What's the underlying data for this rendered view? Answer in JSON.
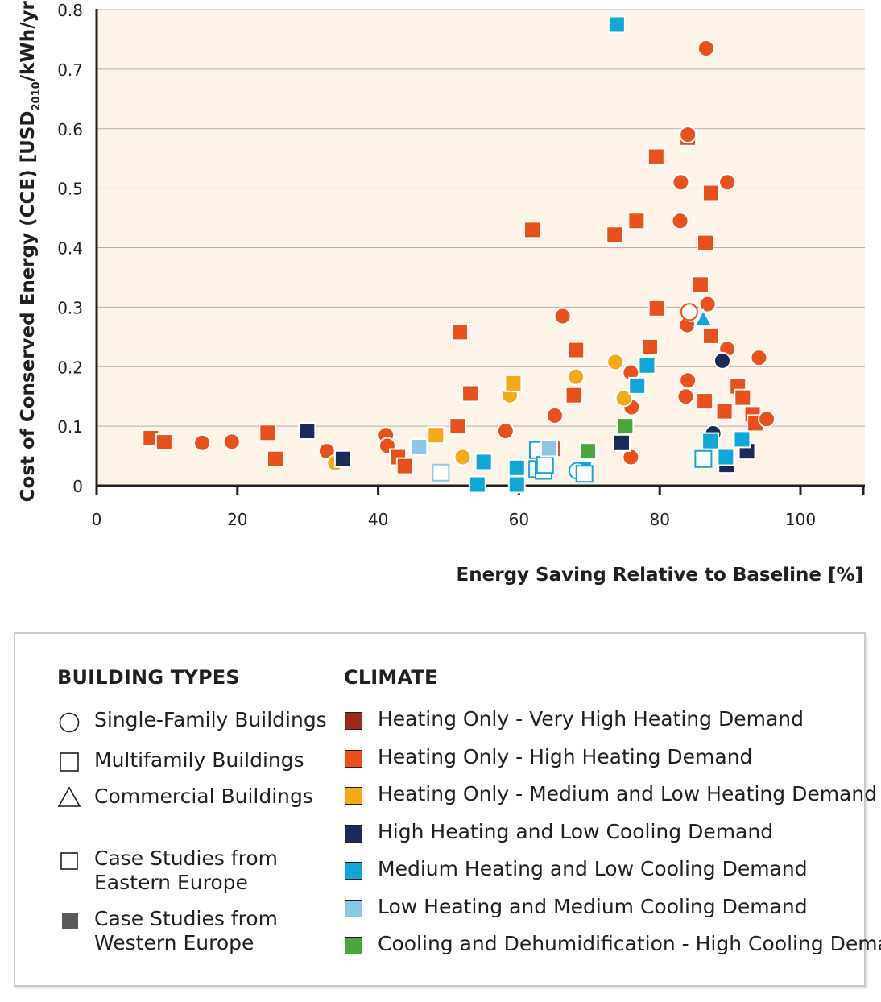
{
  "chart_data": {
    "type": "scatter",
    "xlabel": "Energy Saving Relative to Baseline [%]",
    "ylabel": {
      "main": "Cost of Conserved Energy (CCE) [USD",
      "subscript": "2010",
      "tail": "/kWh/yr]"
    },
    "xlim": [
      0,
      100
    ],
    "ylim": [
      0,
      0.8
    ],
    "xticks": [
      "0",
      "20",
      "40",
      "60",
      "80",
      "100"
    ],
    "yticks": [
      "0",
      "0.1",
      "0.2",
      "0.3",
      "0.4",
      "0.5",
      "0.6",
      "0.7",
      "0.8"
    ],
    "grid": "horizontal",
    "background": "#fdf3e7",
    "climate_colors": {
      "heating_only_very_high": "#9e2a1d",
      "heating_only_high": "#e8501c",
      "heating_only_medium_low": "#f6a81b",
      "high_heating_low_cooling": "#1b2a57",
      "medium_heating_low_cooling": "#10a7d8",
      "low_heating_medium_cooling": "#8cc7e7",
      "cooling_dehumidification": "#4aa63a"
    },
    "series": [
      {
        "climate": "heating_only_high",
        "points": [
          [
            7.7,
            0.08,
            "sq",
            "w"
          ],
          [
            9.6,
            0.073,
            "sq",
            "w"
          ],
          [
            15,
            0.072,
            "ci",
            "w"
          ],
          [
            19.2,
            0.074,
            "ci",
            "w"
          ],
          [
            24.3,
            0.089,
            "sq",
            "w"
          ],
          [
            25.4,
            0.045,
            "sq",
            "w"
          ],
          [
            32.7,
            0.058,
            "ci",
            "w"
          ],
          [
            41.1,
            0.085,
            "ci",
            "w"
          ],
          [
            41.3,
            0.067,
            "ci",
            "w"
          ],
          [
            42.8,
            0.048,
            "sq",
            "w"
          ],
          [
            43.8,
            0.033,
            "sq",
            "w"
          ],
          [
            51.3,
            0.1,
            "sq",
            "w"
          ],
          [
            51.6,
            0.258,
            "sq",
            "w"
          ],
          [
            53.1,
            0.155,
            "sq",
            "w"
          ],
          [
            58.1,
            0.092,
            "ci",
            "w"
          ],
          [
            61.9,
            0.43,
            "sq",
            "w"
          ],
          [
            64.8,
            0.062,
            "sq",
            "w"
          ],
          [
            65.1,
            0.118,
            "ci",
            "w"
          ],
          [
            66.2,
            0.285,
            "ci",
            "w"
          ],
          [
            67.8,
            0.152,
            "sq",
            "w"
          ],
          [
            68.1,
            0.228,
            "sq",
            "w"
          ],
          [
            73.6,
            0.422,
            "sq",
            "w"
          ],
          [
            75.9,
            0.048,
            "ci",
            "w"
          ],
          [
            75.9,
            0.19,
            "ci",
            "w"
          ],
          [
            76,
            0.132,
            "ci",
            "w"
          ],
          [
            76.7,
            0.445,
            "sq",
            "w"
          ],
          [
            78.6,
            0.233,
            "sq",
            "w"
          ],
          [
            79.5,
            0.553,
            "sq",
            "w"
          ],
          [
            79.6,
            0.298,
            "sq",
            "w"
          ],
          [
            82.9,
            0.445,
            "ci",
            "w"
          ],
          [
            83,
            0.51,
            "ci",
            "w"
          ],
          [
            83.7,
            0.15,
            "ci",
            "w"
          ],
          [
            83.9,
            0.27,
            "ci",
            "w"
          ],
          [
            84,
            0.585,
            "sq",
            "w"
          ],
          [
            84,
            0.59,
            "ci",
            "w"
          ],
          [
            84,
            0.177,
            "ci",
            "w"
          ],
          [
            84.4,
            0.29,
            "ci",
            "w"
          ],
          [
            85.8,
            0.338,
            "sq",
            "w"
          ],
          [
            86.4,
            0.142,
            "sq",
            "w"
          ],
          [
            86.5,
            0.408,
            "sq",
            "w"
          ],
          [
            86.6,
            0.735,
            "ci",
            "w"
          ],
          [
            86.8,
            0.305,
            "ci",
            "w"
          ],
          [
            87.3,
            0.492,
            "sq",
            "w"
          ],
          [
            87.3,
            0.252,
            "sq",
            "w"
          ],
          [
            89.2,
            0.125,
            "sq",
            "w"
          ],
          [
            89.6,
            0.51,
            "ci",
            "w"
          ],
          [
            89.6,
            0.23,
            "ci",
            "w"
          ],
          [
            91.1,
            0.167,
            "sq",
            "w"
          ],
          [
            91.8,
            0.148,
            "sq",
            "w"
          ],
          [
            93.2,
            0.12,
            "sq",
            "w"
          ],
          [
            93.6,
            0.105,
            "sq",
            "w"
          ],
          [
            94.1,
            0.215,
            "ci",
            "w"
          ],
          [
            95.2,
            0.112,
            "ci",
            "w"
          ],
          [
            84.2,
            0.292,
            "ci",
            "e"
          ]
        ]
      },
      {
        "climate": "heating_only_medium_low",
        "points": [
          [
            33.9,
            0.038,
            "ci",
            "w"
          ],
          [
            48.2,
            0.085,
            "sq",
            "w"
          ],
          [
            52,
            0.048,
            "ci",
            "w"
          ],
          [
            58.7,
            0.152,
            "ci",
            "w"
          ],
          [
            59.2,
            0.172,
            "sq",
            "w"
          ],
          [
            68.1,
            0.183,
            "ci",
            "w"
          ],
          [
            73.7,
            0.208,
            "ci",
            "w"
          ],
          [
            74.9,
            0.147,
            "ci",
            "w"
          ]
        ]
      },
      {
        "climate": "high_heating_low_cooling",
        "points": [
          [
            29.9,
            0.092,
            "sq",
            "w"
          ],
          [
            35,
            0.045,
            "sq",
            "w"
          ],
          [
            69,
            0.025,
            "sq",
            "w"
          ],
          [
            74.6,
            0.072,
            "sq",
            "w"
          ],
          [
            87.6,
            0.088,
            "ci",
            "w"
          ],
          [
            88.9,
            0.21,
            "ci",
            "w"
          ],
          [
            89.5,
            0.035,
            "sq",
            "w"
          ],
          [
            92.4,
            0.058,
            "sq",
            "w"
          ]
        ]
      },
      {
        "climate": "medium_heating_low_cooling",
        "points": [
          [
            73.9,
            0.775,
            "sq",
            "w"
          ],
          [
            54.1,
            0.002,
            "sq",
            "w"
          ],
          [
            59.7,
            0.002,
            "sq",
            "w"
          ],
          [
            76.8,
            0.168,
            "sq",
            "w"
          ],
          [
            78.2,
            0.202,
            "sq",
            "w"
          ],
          [
            86.2,
            0.28,
            "tr",
            "w"
          ],
          [
            87.2,
            0.075,
            "sq",
            "w"
          ],
          [
            89.4,
            0.048,
            "sq",
            "w"
          ],
          [
            91.7,
            0.078,
            "sq",
            "w"
          ],
          [
            55,
            0.04,
            "sq",
            "w"
          ],
          [
            59.7,
            0.03,
            "sq",
            "w"
          ],
          [
            69.2,
            0.028,
            "sq",
            "w"
          ],
          [
            62.7,
            0.06,
            "sq",
            "e"
          ],
          [
            62.6,
            0.028,
            "sq",
            "e"
          ],
          [
            63.5,
            0.025,
            "sq",
            "e"
          ],
          [
            63.7,
            0.035,
            "sq",
            "e"
          ],
          [
            68.3,
            0.025,
            "ci",
            "e"
          ],
          [
            69.3,
            0.02,
            "sq",
            "e"
          ],
          [
            86.2,
            0.045,
            "sq",
            "e"
          ]
        ]
      },
      {
        "climate": "low_heating_medium_cooling",
        "points": [
          [
            45.8,
            0.065,
            "sq",
            "w"
          ],
          [
            64.3,
            0.063,
            "sq",
            "w"
          ],
          [
            48.9,
            0.022,
            "sq",
            "e"
          ]
        ]
      },
      {
        "climate": "cooling_dehumidification",
        "points": [
          [
            75.1,
            0.1,
            "sq",
            "w"
          ],
          [
            69.8,
            0.058,
            "sq",
            "w"
          ]
        ]
      }
    ]
  },
  "legend": {
    "building_types_title": "BUILDING TYPES",
    "climate_title": "CLIMATE",
    "building_types": [
      {
        "label": "Single-Family Buildings",
        "shape": "circle"
      },
      {
        "label": "Multifamily Buildings",
        "shape": "square"
      },
      {
        "label": "Commercial Buildings",
        "shape": "triangle"
      }
    ],
    "case_studies": [
      {
        "line1": "Case Studies from",
        "line2": "Eastern Europe",
        "fill": "open"
      },
      {
        "line1": "Case Studies from",
        "line2": "Western Europe",
        "fill": "filled"
      }
    ],
    "climates": [
      {
        "label": "Heating Only - Very High Heating Demand",
        "color": "#9e2a1d"
      },
      {
        "label": "Heating Only -  High Heating Demand",
        "color": "#e8501c"
      },
      {
        "label": "Heating Only - Medium and Low Heating Demand",
        "color": "#f6a81b"
      },
      {
        "label": "High Heating and Low Cooling Demand",
        "color": "#1b2a57"
      },
      {
        "label": "Medium Heating and Low Cooling Demand",
        "color": "#10a7d8"
      },
      {
        "label": "Low Heating and Medium Cooling Demand",
        "color": "#8cc7e7"
      },
      {
        "label": "Cooling and Dehumidification - High Cooling Demand",
        "color": "#4aa63a"
      }
    ]
  }
}
